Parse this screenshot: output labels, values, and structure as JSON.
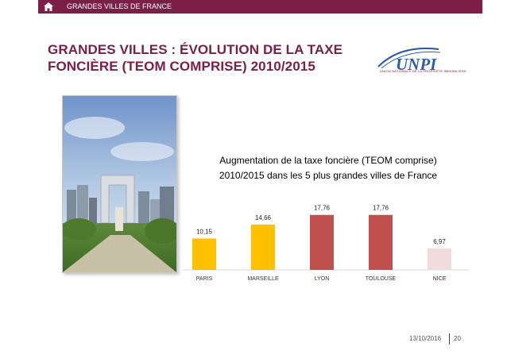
{
  "header": {
    "section": "GRANDES VILLES DE FRANCE",
    "home_icon": "home-icon"
  },
  "slide": {
    "title_line1": "GRANDES VILLES : ÉVOLUTION DE LA TAXE",
    "title_line2": "FONCIÈRE (TEOM COMPRISE) 2010/2015",
    "logo_text": "UNPI",
    "logo_subtext": "UNION NATIONALE DE LA PROPRIÉTÉ IMMOBILIÈRE"
  },
  "chart_data": {
    "type": "bar",
    "title_line1": "Augmentation de la taxe foncière (TEOM comprise)",
    "title_line2": "2010/2015 dans les 5 plus grandes villes de France",
    "categories": [
      "PARIS",
      "MARSEILLE",
      "LYON",
      "TOULOUSE",
      "NICE"
    ],
    "values": [
      10.15,
      14.66,
      17.76,
      17.76,
      6.97
    ],
    "value_labels": [
      "10,15",
      "14,66",
      "17,76",
      "17,76",
      "6,97"
    ],
    "colors": [
      "#ffc000",
      "#ffc000",
      "#c0504d",
      "#c0504d",
      "#f2dcdb"
    ],
    "ylim": [
      0,
      20
    ],
    "grid": false,
    "legend": "none"
  },
  "footer": {
    "date": "13/10/2016",
    "page": "20"
  },
  "colors": {
    "brand": "#7a2045",
    "logo_blue": "#2e5da8"
  }
}
